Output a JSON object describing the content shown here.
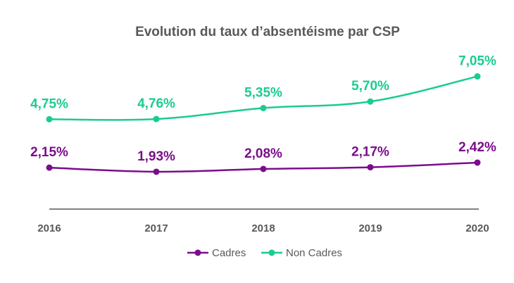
{
  "chart_data": {
    "type": "line",
    "title": "Evolution du taux d’absentéisme par CSP",
    "xlabel": "",
    "ylabel": "",
    "categories": [
      "2016",
      "2017",
      "2018",
      "2019",
      "2020"
    ],
    "ylim": [
      0,
      8
    ],
    "grid": false,
    "legend_position": "bottom",
    "series": [
      {
        "name": "Cadres",
        "color": "#7B0D8C",
        "values": [
          2.15,
          1.93,
          2.08,
          2.17,
          2.42
        ],
        "labels": [
          "2,15%",
          "1,93%",
          "2,08%",
          "2,17%",
          "2,42%"
        ]
      },
      {
        "name": "Non Cadres",
        "color": "#1ACC8F",
        "values": [
          4.75,
          4.76,
          5.35,
          5.7,
          7.05
        ],
        "labels": [
          "4,75%",
          "4,76%",
          "5,35%",
          "5,70%",
          "7,05%"
        ]
      }
    ]
  }
}
